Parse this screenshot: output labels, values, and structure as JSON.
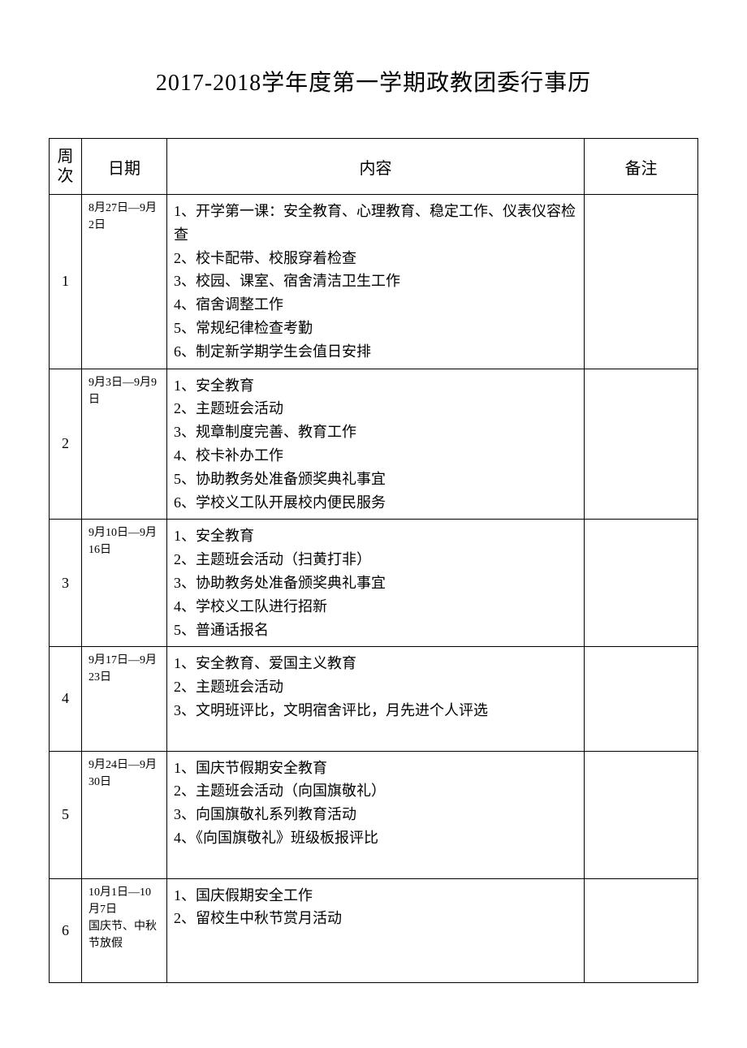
{
  "title": "2017-2018学年度第一学期政教团委行事历",
  "headers": {
    "week": "周次",
    "date": "日期",
    "content": "内容",
    "note": "备注"
  },
  "rows": [
    {
      "week": "1",
      "date": "8月27日—9月2日",
      "content": "1、开学第一课：安全教育、心理教育、稳定工作、仪表仪容检查\n2、校卡配带、校服穿着检查\n3、校园、课室、宿舍清洁卫生工作\n4、宿舍调整工作\n5、常规纪律检查考勤\n6、制定新学期学生会值日安排",
      "note": ""
    },
    {
      "week": "2",
      "date": "9月3日—9月9日",
      "content": "1、安全教育\n2、主题班会活动\n3、规章制度完善、教育工作\n4、校卡补办工作\n5、协助教务处准备颁奖典礼事宜\n6、学校义工队开展校内便民服务",
      "note": ""
    },
    {
      "week": "3",
      "date": "9月10日—9月16日",
      "content": "1、安全教育\n2、主题班会活动（扫黄打非）\n3、协助教务处准备颁奖典礼事宜\n4、学校义工队进行招新\n5、普通话报名",
      "note": ""
    },
    {
      "week": "4",
      "date": "9月17日—9月23日",
      "content": "1、安全教育、爱国主义教育\n2、主题班会活动\n3、文明班评比，文明宿舍评比，月先进个人评选\n",
      "note": ""
    },
    {
      "week": "5",
      "date": "9月24日—9月30日",
      "content": "1、国庆节假期安全教育\n2、主题班会活动（向国旗敬礼）\n3、向国旗敬礼系列教育活动\n4、《向国旗敬礼》班级板报评比\n",
      "note": ""
    },
    {
      "week": "6",
      "date": "10月1日—10月7日\n国庆节、中秋节放假",
      "content": "1、国庆假期安全工作\n2、留校生中秋节赏月活动\n\n",
      "note": ""
    }
  ],
  "styling": {
    "background_color": "#ffffff",
    "border_color": "#000000",
    "title_fontsize": 28,
    "header_fontsize": 20,
    "content_fontsize": 18,
    "date_fontsize": 14,
    "font_family": "SimSun"
  }
}
